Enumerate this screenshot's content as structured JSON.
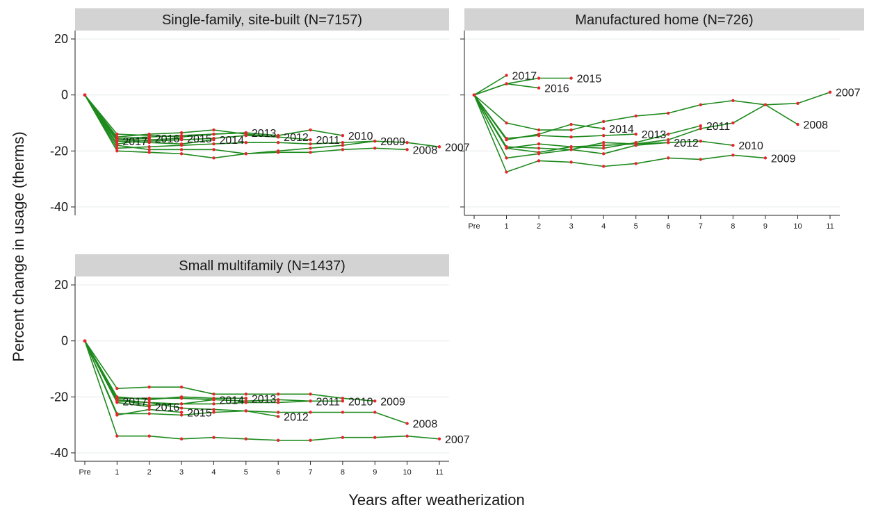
{
  "chart_data": {
    "type": "line",
    "ylabel": "Percent change in usage (therms)",
    "xlabel": "Years after weatherization",
    "x_ticks": [
      "Pre",
      "1",
      "2",
      "3",
      "4",
      "5",
      "6",
      "7",
      "8",
      "9",
      "10",
      "11"
    ],
    "y_ticks": [
      20,
      0,
      -20,
      -40
    ],
    "ylim": [
      -43,
      23
    ],
    "grid": "horizontal",
    "line_color": "#1e8a1e",
    "marker_color": "#e8252a",
    "panel_header_color": "#d3d3d3",
    "panels": [
      {
        "title": "Single-family, site-built (N=7157)",
        "series": [
          {
            "name": "2007",
            "values": [
              0,
              -19.0,
              -18.5,
              -18.0,
              -17.5,
              -17.0,
              -17.0,
              -17.5,
              -17.0,
              -16.5,
              -17.0,
              -18.5
            ]
          },
          {
            "name": "2008",
            "values": [
              0,
              -20.0,
              -20.5,
              -21.0,
              -22.5,
              -21.0,
              -20.5,
              -20.5,
              -19.5,
              -19.0,
              -19.5
            ]
          },
          {
            "name": "2009",
            "values": [
              0,
              -18.0,
              -19.5,
              -19.5,
              -19.5,
              -21.0,
              -20.0,
              -19.0,
              -18.0,
              -16.5
            ]
          },
          {
            "name": "2010",
            "values": [
              0,
              -15.5,
              -15.0,
              -14.5,
              -14.0,
              -13.5,
              -14.5,
              -12.5,
              -14.5
            ]
          },
          {
            "name": "2011",
            "values": [
              0,
              -16.0,
              -16.5,
              -16.0,
              -15.5,
              -14.5,
              -15.0,
              -16.0
            ]
          },
          {
            "name": "2012",
            "values": [
              0,
              -15.0,
              -14.0,
              -13.5,
              -12.5,
              -14.0,
              -15.0
            ]
          },
          {
            "name": "2013",
            "values": [
              0,
              -14.0,
              -14.5,
              -15.0,
              -14.0,
              -13.5
            ]
          },
          {
            "name": "2014",
            "values": [
              0,
              -16.5,
              -17.0,
              -17.5,
              -16.0
            ]
          },
          {
            "name": "2015",
            "values": [
              0,
              -17.5,
              -16.0,
              -15.5
            ]
          },
          {
            "name": "2016",
            "values": [
              0,
              -16.0,
              -15.5
            ]
          },
          {
            "name": "2017",
            "values": [
              0,
              -16.5
            ]
          }
        ]
      },
      {
        "title": "Manufactured home (N=726)",
        "series": [
          {
            "name": "2007",
            "values": [
              0,
              -10.0,
              -12.5,
              -12.5,
              -9.5,
              -7.5,
              -6.5,
              -3.5,
              -2.0,
              -3.5,
              -3.0,
              1.0
            ]
          },
          {
            "name": "2008",
            "values": [
              0,
              -19.0,
              -20.5,
              -18.5,
              -18.0,
              -17.5,
              -16.0,
              -12.0,
              -10.0,
              -3.5,
              -10.5
            ]
          },
          {
            "name": "2009",
            "values": [
              0,
              -27.5,
              -23.5,
              -24.0,
              -25.5,
              -24.5,
              -22.5,
              -23.0,
              -21.5,
              -22.5
            ]
          },
          {
            "name": "2010",
            "values": [
              0,
              -22.5,
              -21.0,
              -19.5,
              -17.0,
              -17.5,
              -17.0,
              -16.5,
              -18.0
            ]
          },
          {
            "name": "2011",
            "values": [
              0,
              -19.0,
              -17.5,
              -18.5,
              -19.0,
              -17.0,
              -14.0,
              -11.0
            ]
          },
          {
            "name": "2012",
            "values": [
              0,
              -18.5,
              -19.0,
              -19.5,
              -21.0,
              -18.0,
              -17.0
            ]
          },
          {
            "name": "2013",
            "values": [
              0,
              -15.5,
              -14.5,
              -15.0,
              -14.5,
              -14.0
            ]
          },
          {
            "name": "2014",
            "values": [
              0,
              -16.0,
              -14.0,
              -10.5,
              -12.0
            ]
          },
          {
            "name": "2015",
            "values": [
              0,
              4.0,
              6.0,
              6.0
            ]
          },
          {
            "name": "2016",
            "values": [
              0,
              4.0,
              2.5
            ]
          },
          {
            "name": "2017",
            "values": [
              0,
              7.0
            ]
          }
        ]
      },
      {
        "title": "Small multifamily (N=1437)",
        "series": [
          {
            "name": "2007",
            "values": [
              0,
              -34.0,
              -34.0,
              -35.0,
              -34.5,
              -35.0,
              -35.5,
              -35.5,
              -34.5,
              -34.5,
              -34.0,
              -35.0
            ]
          },
          {
            "name": "2008",
            "values": [
              0,
              -26.0,
              -26.0,
              -26.5,
              -25.5,
              -25.0,
              -25.5,
              -25.5,
              -25.5,
              -25.5,
              -29.5
            ]
          },
          {
            "name": "2009",
            "values": [
              0,
              -17.0,
              -16.5,
              -16.5,
              -19.0,
              -19.0,
              -19.0,
              -19.0,
              -20.5,
              -21.5
            ]
          },
          {
            "name": "2010",
            "values": [
              0,
              -20.5,
              -20.5,
              -20.5,
              -21.0,
              -21.5,
              -21.0,
              -21.5,
              -21.5
            ]
          },
          {
            "name": "2011",
            "values": [
              0,
              -21.5,
              -22.0,
              -22.5,
              -22.5,
              -22.0,
              -22.0,
              -21.5
            ]
          },
          {
            "name": "2012",
            "values": [
              0,
              -21.0,
              -22.0,
              -24.0,
              -24.5,
              -25.0,
              -27.0
            ]
          },
          {
            "name": "2013",
            "values": [
              0,
              -20.0,
              -21.0,
              -20.0,
              -20.5,
              -20.5
            ]
          },
          {
            "name": "2014",
            "values": [
              0,
              -21.0,
              -23.0,
              -22.5,
              -21.0
            ]
          },
          {
            "name": "2015",
            "values": [
              0,
              -26.5,
              -24.5,
              -25.5
            ]
          },
          {
            "name": "2016",
            "values": [
              0,
              -22.0,
              -23.5
            ]
          },
          {
            "name": "2017",
            "values": [
              0,
              -21.5
            ]
          }
        ]
      }
    ]
  }
}
